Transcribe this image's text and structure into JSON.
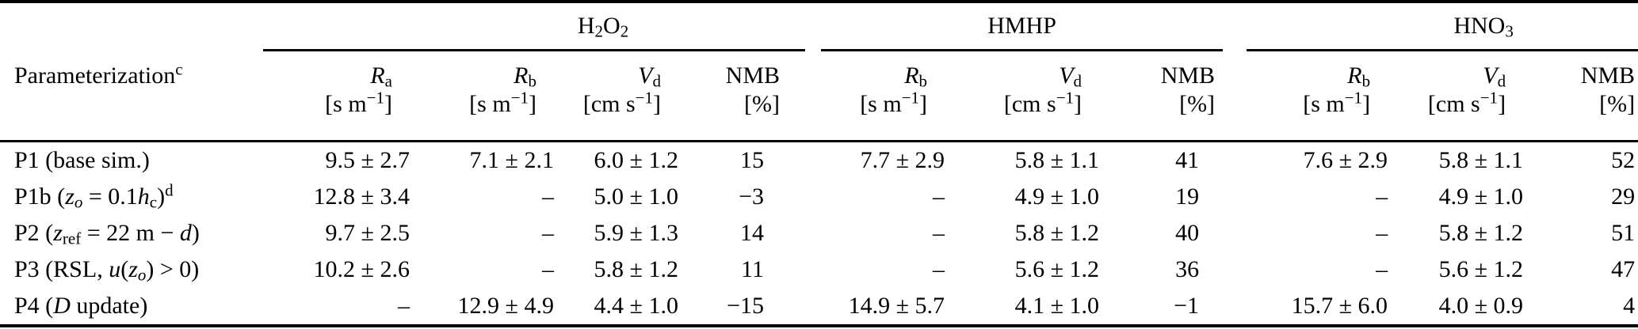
{
  "colors": {
    "text": "#000000",
    "background": "#ffffff",
    "rule": "#000000"
  },
  "header": {
    "param": {
      "parts": [
        {
          "t": "Parameterization"
        },
        {
          "t": "c",
          "sup": 1
        }
      ]
    },
    "groups": [
      {
        "name": "H2O2",
        "parts": [
          {
            "t": "H"
          },
          {
            "t": "2",
            "sub": 1
          },
          {
            "t": "O"
          },
          {
            "t": "2",
            "sub": 1
          }
        ]
      },
      {
        "name": "HMHP",
        "parts": [
          {
            "t": "HMHP"
          }
        ]
      },
      {
        "name": "HNO3",
        "parts": [
          {
            "t": "HNO"
          },
          {
            "t": "3",
            "sub": 1
          }
        ]
      }
    ],
    "columns": [
      {
        "group": "H2O2",
        "name_parts": [
          {
            "t": "R",
            "i": 1
          },
          {
            "t": "a",
            "sub": 1
          }
        ],
        "unit_parts": [
          {
            "t": "[s m"
          },
          {
            "t": "−1",
            "sup": 1
          },
          {
            "t": "]"
          }
        ]
      },
      {
        "group": "H2O2",
        "name_parts": [
          {
            "t": "R",
            "i": 1
          },
          {
            "t": "b",
            "sub": 1
          }
        ],
        "unit_parts": [
          {
            "t": "[s m"
          },
          {
            "t": "−1",
            "sup": 1
          },
          {
            "t": "]"
          }
        ]
      },
      {
        "group": "H2O2",
        "name_parts": [
          {
            "t": "V",
            "i": 1
          },
          {
            "t": "d",
            "sub": 1
          }
        ],
        "unit_parts": [
          {
            "t": "[cm s"
          },
          {
            "t": "−1",
            "sup": 1
          },
          {
            "t": "]"
          }
        ]
      },
      {
        "group": "H2O2",
        "name_parts": [
          {
            "t": "NMB"
          }
        ],
        "unit_parts": [
          {
            "t": "[%]"
          }
        ]
      },
      {
        "group": "HMHP",
        "name_parts": [
          {
            "t": "R",
            "i": 1
          },
          {
            "t": "b",
            "sub": 1
          }
        ],
        "unit_parts": [
          {
            "t": "[s m"
          },
          {
            "t": "−1",
            "sup": 1
          },
          {
            "t": "]"
          }
        ]
      },
      {
        "group": "HMHP",
        "name_parts": [
          {
            "t": "V",
            "i": 1
          },
          {
            "t": "d",
            "sub": 1
          }
        ],
        "unit_parts": [
          {
            "t": "[cm s"
          },
          {
            "t": "−1",
            "sup": 1
          },
          {
            "t": "]"
          }
        ]
      },
      {
        "group": "HMHP",
        "name_parts": [
          {
            "t": "NMB"
          }
        ],
        "unit_parts": [
          {
            "t": "[%]"
          }
        ]
      },
      {
        "group": "HNO3",
        "name_parts": [
          {
            "t": "R",
            "i": 1
          },
          {
            "t": "b",
            "sub": 1
          }
        ],
        "unit_parts": [
          {
            "t": "[s m"
          },
          {
            "t": "−1",
            "sup": 1
          },
          {
            "t": "]"
          }
        ]
      },
      {
        "group": "HNO3",
        "name_parts": [
          {
            "t": "V",
            "i": 1
          },
          {
            "t": "d",
            "sub": 1
          }
        ],
        "unit_parts": [
          {
            "t": "[cm s"
          },
          {
            "t": "−1",
            "sup": 1
          },
          {
            "t": "]"
          }
        ]
      },
      {
        "group": "HNO3",
        "name_parts": [
          {
            "t": "NMB"
          }
        ],
        "unit_parts": [
          {
            "t": "[%]"
          }
        ]
      }
    ]
  },
  "rows": [
    {
      "id": "p1",
      "label_parts": [
        {
          "t": "P1 (base sim.)"
        }
      ],
      "values": [
        "9.5 ± 2.7",
        "7.1 ± 2.1",
        "6.0 ± 1.2",
        "15",
        "7.7 ± 2.9",
        "5.8 ± 1.1",
        "41",
        "7.6 ± 2.9",
        "5.8 ± 1.1",
        "52"
      ]
    },
    {
      "id": "p1b",
      "label_parts": [
        {
          "t": "P1b ("
        },
        {
          "t": "z",
          "i": 1
        },
        {
          "t": "o",
          "i": 1,
          "sub": 1
        },
        {
          "t": " = 0.1"
        },
        {
          "t": "h",
          "i": 1
        },
        {
          "t": "c",
          "sub": 1
        },
        {
          "t": ")"
        },
        {
          "t": "d",
          "sup": 1
        }
      ],
      "values": [
        "12.8 ± 3.4",
        "–",
        "5.0 ± 1.0",
        "−3",
        "–",
        "4.9 ± 1.0",
        "19",
        "–",
        "4.9 ± 1.0",
        "29"
      ]
    },
    {
      "id": "p2",
      "label_parts": [
        {
          "t": "P2 ("
        },
        {
          "t": "z",
          "i": 1
        },
        {
          "t": "ref",
          "sub": 1
        },
        {
          "t": " = 22 m − "
        },
        {
          "t": "d",
          "i": 1
        },
        {
          "t": ")"
        }
      ],
      "values": [
        "9.7 ± 2.5",
        "–",
        "5.9 ± 1.3",
        "14",
        "–",
        "5.8 ± 1.2",
        "40",
        "–",
        "5.8 ± 1.2",
        "51"
      ]
    },
    {
      "id": "p3",
      "label_parts": [
        {
          "t": "P3 (RSL, "
        },
        {
          "t": "u",
          "i": 1
        },
        {
          "t": "("
        },
        {
          "t": "z",
          "i": 1
        },
        {
          "t": "o",
          "i": 1,
          "sub": 1
        },
        {
          "t": ") > 0)"
        }
      ],
      "values": [
        "10.2 ± 2.6",
        "–",
        "5.8 ± 1.2",
        "11",
        "–",
        "5.6 ± 1.2",
        "36",
        "–",
        "5.6 ± 1.2",
        "47"
      ]
    },
    {
      "id": "p4",
      "label_parts": [
        {
          "t": "P4 ("
        },
        {
          "t": "D",
          "i": 1
        },
        {
          "t": " update)"
        }
      ],
      "values": [
        "–",
        "12.9 ± 4.9",
        "4.4 ± 1.0",
        "−15",
        "14.9 ± 5.7",
        "4.1 ± 1.0",
        "−1",
        "15.7 ± 6.0",
        "4.0 ± 0.9",
        "4"
      ]
    }
  ]
}
